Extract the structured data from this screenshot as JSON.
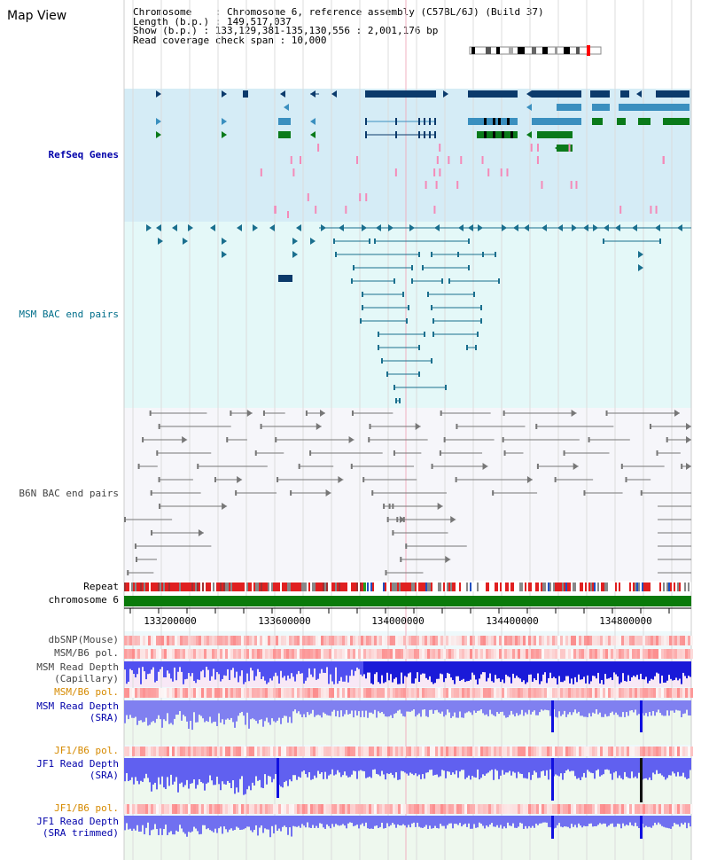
{
  "view_title": "Map View",
  "info": {
    "chromosome": "Chromosome    : Chromosome 6, reference assembly (C57BL/6J) (Build 37)",
    "length": "Length (b.p.) : 149,517,037",
    "show": "Show (b.p.) : 133,129,381-135,130,556 : 2,001,176 bp",
    "read_coverage": "Read coverage check span : 10,000"
  },
  "tracks": {
    "refseq": "RefSeq Genes",
    "msm_bac": "MSM BAC end pairs",
    "b6n_bac": "B6N BAC end pairs",
    "repeat": "Repeat",
    "chromosome": "chromosome 6",
    "dbsnp": "dbSNP(Mouse)",
    "msm_b6_pol_1": "MSM/B6 pol.",
    "msm_depth_cap_1": "MSM Read Depth",
    "msm_depth_cap_2": "(Capillary)",
    "msm_b6_pol_2": "MSM/B6 pol.",
    "msm_depth_sra_1": "MSM Read Depth",
    "msm_depth_sra_2": "(SRA)",
    "jf1_b6_pol_1": "JF1/B6 pol.",
    "jf1_depth_sra_1": "JF1 Read Depth",
    "jf1_depth_sra_2": "(SRA)",
    "jf1_b6_pol_2": "JF1/B6 pol.",
    "jf1_depth_trim_1": "JF1 Read Depth",
    "jf1_depth_trim_2": "(SRA trimmed)"
  },
  "axis": {
    "ticks": [
      "133200000",
      "133600000",
      "134000000",
      "134400000",
      "134800000"
    ]
  },
  "colors": {
    "refseq_bg": "#d5ecf6",
    "msm_bg": "#e4f8f8",
    "b6n_bg": "#f6f6fa",
    "gene_dark": "#0b3a6b",
    "gene_mid": "#3a8fbf",
    "gene_green": "#0a7a1a",
    "msm_pair": "#1a6f8e",
    "b6n_pair": "#777777",
    "chrom_bar": "#0a7a0a",
    "depth_blue": "#1a1aff"
  }
}
